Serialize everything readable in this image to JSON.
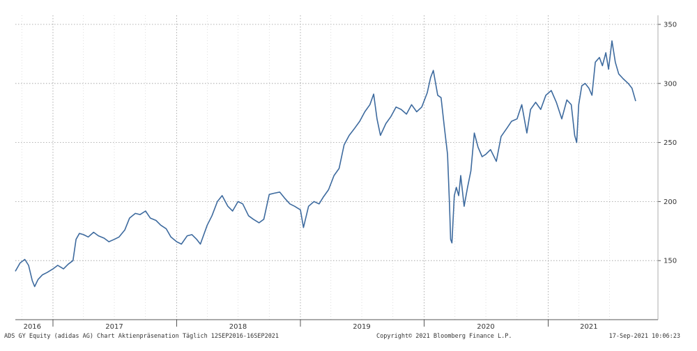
{
  "chart_data": {
    "type": "line",
    "title": "",
    "xlabel": "",
    "ylabel": "",
    "ylim": [
      100,
      350
    ],
    "yticks": [
      150,
      200,
      250,
      300,
      350
    ],
    "x_start": "2016-09-12",
    "x_end": "2021-09-16",
    "x_ticks": [
      {
        "label": "2016",
        "date": "2016-11-01"
      },
      {
        "label": "2017",
        "date": "2017-07-01"
      },
      {
        "label": "2018",
        "date": "2018-07-01"
      },
      {
        "label": "2019",
        "date": "2019-07-01"
      },
      {
        "label": "2020",
        "date": "2020-07-01"
      },
      {
        "label": "2021",
        "date": "2021-05-01"
      }
    ],
    "grid": true,
    "line_color": "#3d6a9e",
    "series": [
      {
        "points": [
          [
            "2016-09-12",
            141
          ],
          [
            "2016-09-26",
            148
          ],
          [
            "2016-10-10",
            151
          ],
          [
            "2016-10-21",
            146
          ],
          [
            "2016-11-01",
            133
          ],
          [
            "2016-11-08",
            128
          ],
          [
            "2016-11-18",
            134
          ],
          [
            "2016-12-01",
            138
          ],
          [
            "2016-12-15",
            140
          ],
          [
            "2017-01-01",
            143
          ],
          [
            "2017-01-15",
            146
          ],
          [
            "2017-02-01",
            143
          ],
          [
            "2017-02-15",
            147
          ],
          [
            "2017-03-01",
            150
          ],
          [
            "2017-03-10",
            168
          ],
          [
            "2017-03-20",
            173
          ],
          [
            "2017-04-01",
            172
          ],
          [
            "2017-04-15",
            170
          ],
          [
            "2017-05-01",
            174
          ],
          [
            "2017-05-15",
            171
          ],
          [
            "2017-06-01",
            169
          ],
          [
            "2017-06-15",
            166
          ],
          [
            "2017-07-01",
            168
          ],
          [
            "2017-07-15",
            170
          ],
          [
            "2017-08-01",
            176
          ],
          [
            "2017-08-15",
            186
          ],
          [
            "2017-09-01",
            190
          ],
          [
            "2017-09-15",
            189
          ],
          [
            "2017-10-01",
            192
          ],
          [
            "2017-10-15",
            186
          ],
          [
            "2017-11-01",
            184
          ],
          [
            "2017-11-15",
            180
          ],
          [
            "2017-12-01",
            177
          ],
          [
            "2017-12-15",
            170
          ],
          [
            "2018-01-01",
            166
          ],
          [
            "2018-01-15",
            164
          ],
          [
            "2018-02-01",
            171
          ],
          [
            "2018-02-15",
            172
          ],
          [
            "2018-03-01",
            168
          ],
          [
            "2018-03-12",
            164
          ],
          [
            "2018-04-01",
            180
          ],
          [
            "2018-04-15",
            188
          ],
          [
            "2018-05-01",
            200
          ],
          [
            "2018-05-15",
            205
          ],
          [
            "2018-06-01",
            196
          ],
          [
            "2018-06-15",
            192
          ],
          [
            "2018-07-01",
            200
          ],
          [
            "2018-07-15",
            198
          ],
          [
            "2018-08-01",
            188
          ],
          [
            "2018-08-15",
            185
          ],
          [
            "2018-09-01",
            182
          ],
          [
            "2018-09-15",
            185
          ],
          [
            "2018-10-01",
            206
          ],
          [
            "2018-10-15",
            207
          ],
          [
            "2018-11-01",
            208
          ],
          [
            "2018-11-15",
            203
          ],
          [
            "2018-12-01",
            198
          ],
          [
            "2018-12-15",
            196
          ],
          [
            "2019-01-01",
            193
          ],
          [
            "2019-01-10",
            178
          ],
          [
            "2019-01-25",
            196
          ],
          [
            "2019-02-10",
            200
          ],
          [
            "2019-02-25",
            198
          ],
          [
            "2019-03-10",
            204
          ],
          [
            "2019-03-25",
            210
          ],
          [
            "2019-04-10",
            222
          ],
          [
            "2019-04-25",
            228
          ],
          [
            "2019-05-10",
            248
          ],
          [
            "2019-05-25",
            256
          ],
          [
            "2019-06-10",
            262
          ],
          [
            "2019-06-25",
            268
          ],
          [
            "2019-07-10",
            276
          ],
          [
            "2019-07-25",
            282
          ],
          [
            "2019-08-05",
            291
          ],
          [
            "2019-08-15",
            270
          ],
          [
            "2019-08-25",
            256
          ],
          [
            "2019-09-10",
            266
          ],
          [
            "2019-09-25",
            272
          ],
          [
            "2019-10-10",
            280
          ],
          [
            "2019-10-25",
            278
          ],
          [
            "2019-11-10",
            274
          ],
          [
            "2019-11-25",
            282
          ],
          [
            "2019-12-10",
            276
          ],
          [
            "2019-12-25",
            280
          ],
          [
            "2020-01-10",
            292
          ],
          [
            "2020-01-20",
            305
          ],
          [
            "2020-01-28",
            311
          ],
          [
            "2020-02-10",
            290
          ],
          [
            "2020-02-20",
            288
          ],
          [
            "2020-03-01",
            262
          ],
          [
            "2020-03-10",
            240
          ],
          [
            "2020-03-16",
            196
          ],
          [
            "2020-03-19",
            168
          ],
          [
            "2020-03-23",
            165
          ],
          [
            "2020-03-30",
            205
          ],
          [
            "2020-04-05",
            212
          ],
          [
            "2020-04-12",
            205
          ],
          [
            "2020-04-18",
            222
          ],
          [
            "2020-04-28",
            196
          ],
          [
            "2020-05-08",
            212
          ],
          [
            "2020-05-18",
            226
          ],
          [
            "2020-05-28",
            258
          ],
          [
            "2020-06-08",
            246
          ],
          [
            "2020-06-20",
            238
          ],
          [
            "2020-07-01",
            240
          ],
          [
            "2020-07-15",
            244
          ],
          [
            "2020-08-01",
            234
          ],
          [
            "2020-08-15",
            255
          ],
          [
            "2020-09-01",
            262
          ],
          [
            "2020-09-15",
            268
          ],
          [
            "2020-10-01",
            270
          ],
          [
            "2020-10-15",
            282
          ],
          [
            "2020-10-30",
            258
          ],
          [
            "2020-11-10",
            278
          ],
          [
            "2020-11-25",
            284
          ],
          [
            "2020-12-10",
            278
          ],
          [
            "2020-12-25",
            290
          ],
          [
            "2021-01-10",
            294
          ],
          [
            "2021-01-25",
            284
          ],
          [
            "2021-02-10",
            270
          ],
          [
            "2021-02-25",
            286
          ],
          [
            "2021-03-10",
            282
          ],
          [
            "2021-03-20",
            256
          ],
          [
            "2021-03-26",
            250
          ],
          [
            "2021-04-01",
            282
          ],
          [
            "2021-04-10",
            298
          ],
          [
            "2021-04-20",
            300
          ],
          [
            "2021-05-01",
            296
          ],
          [
            "2021-05-10",
            290
          ],
          [
            "2021-05-20",
            318
          ],
          [
            "2021-06-01",
            322
          ],
          [
            "2021-06-10",
            315
          ],
          [
            "2021-06-20",
            326
          ],
          [
            "2021-06-28",
            312
          ],
          [
            "2021-07-08",
            336
          ],
          [
            "2021-07-18",
            318
          ],
          [
            "2021-07-28",
            308
          ],
          [
            "2021-08-10",
            304
          ],
          [
            "2021-08-25",
            300
          ],
          [
            "2021-09-05",
            296
          ],
          [
            "2021-09-16",
            285
          ]
        ]
      }
    ]
  },
  "footer": {
    "left": "ADS GY Equity (adidas AG) Chart Aktienpräsenation  Täglich 12SEP2016-16SEP2021",
    "center": "Copyright© 2021 Bloomberg Finance L.P.",
    "right": "17-Sep-2021 10:06:23"
  }
}
